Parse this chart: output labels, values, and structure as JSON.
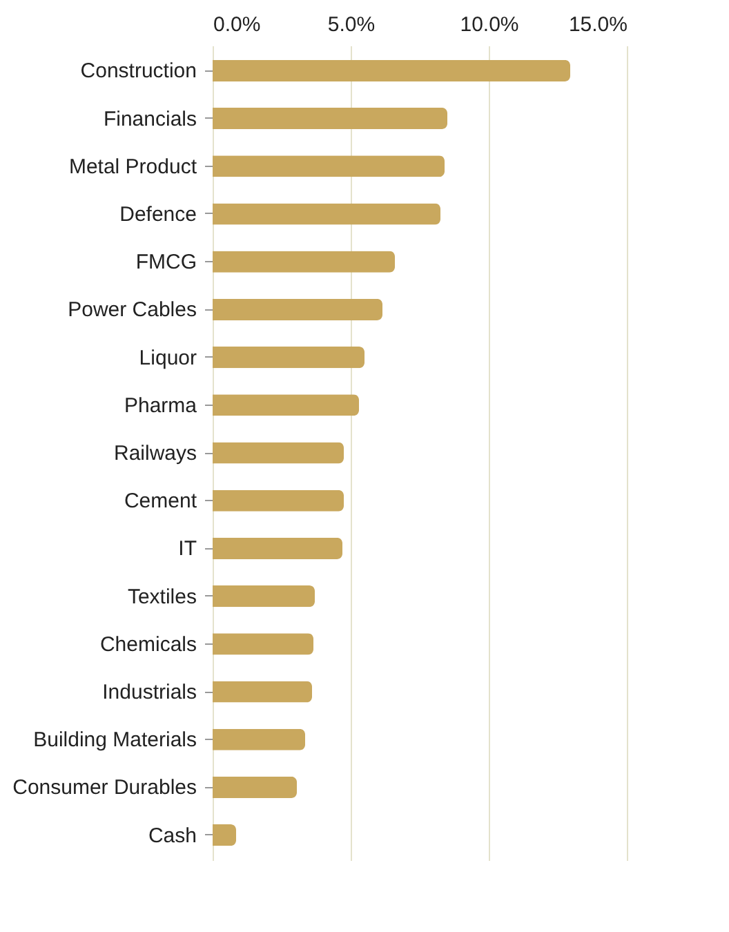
{
  "chart_data": {
    "type": "bar",
    "orientation": "horizontal",
    "categories": [
      "Construction",
      "Financials",
      "Metal Product",
      "Defence",
      "FMCG",
      "Power Cables",
      "Liquor",
      "Pharma",
      "Railways",
      "Cement",
      "IT",
      "Textiles",
      "Chemicals",
      "Industrials",
      "Building Materials",
      "Consumer Durables",
      "Cash"
    ],
    "values": [
      12.95,
      8.5,
      8.4,
      8.25,
      6.6,
      6.15,
      5.5,
      5.3,
      4.75,
      4.75,
      4.7,
      3.7,
      3.65,
      3.6,
      3.35,
      3.05,
      0.85
    ],
    "color": "#c9a85e",
    "xlim": [
      0,
      15
    ],
    "xticks": [
      {
        "value": 0,
        "label": "0.0%"
      },
      {
        "value": 5,
        "label": "5.0%"
      },
      {
        "value": 10,
        "label": "10.0%"
      },
      {
        "value": 15,
        "label": "15.0%"
      }
    ],
    "grid": "x"
  }
}
